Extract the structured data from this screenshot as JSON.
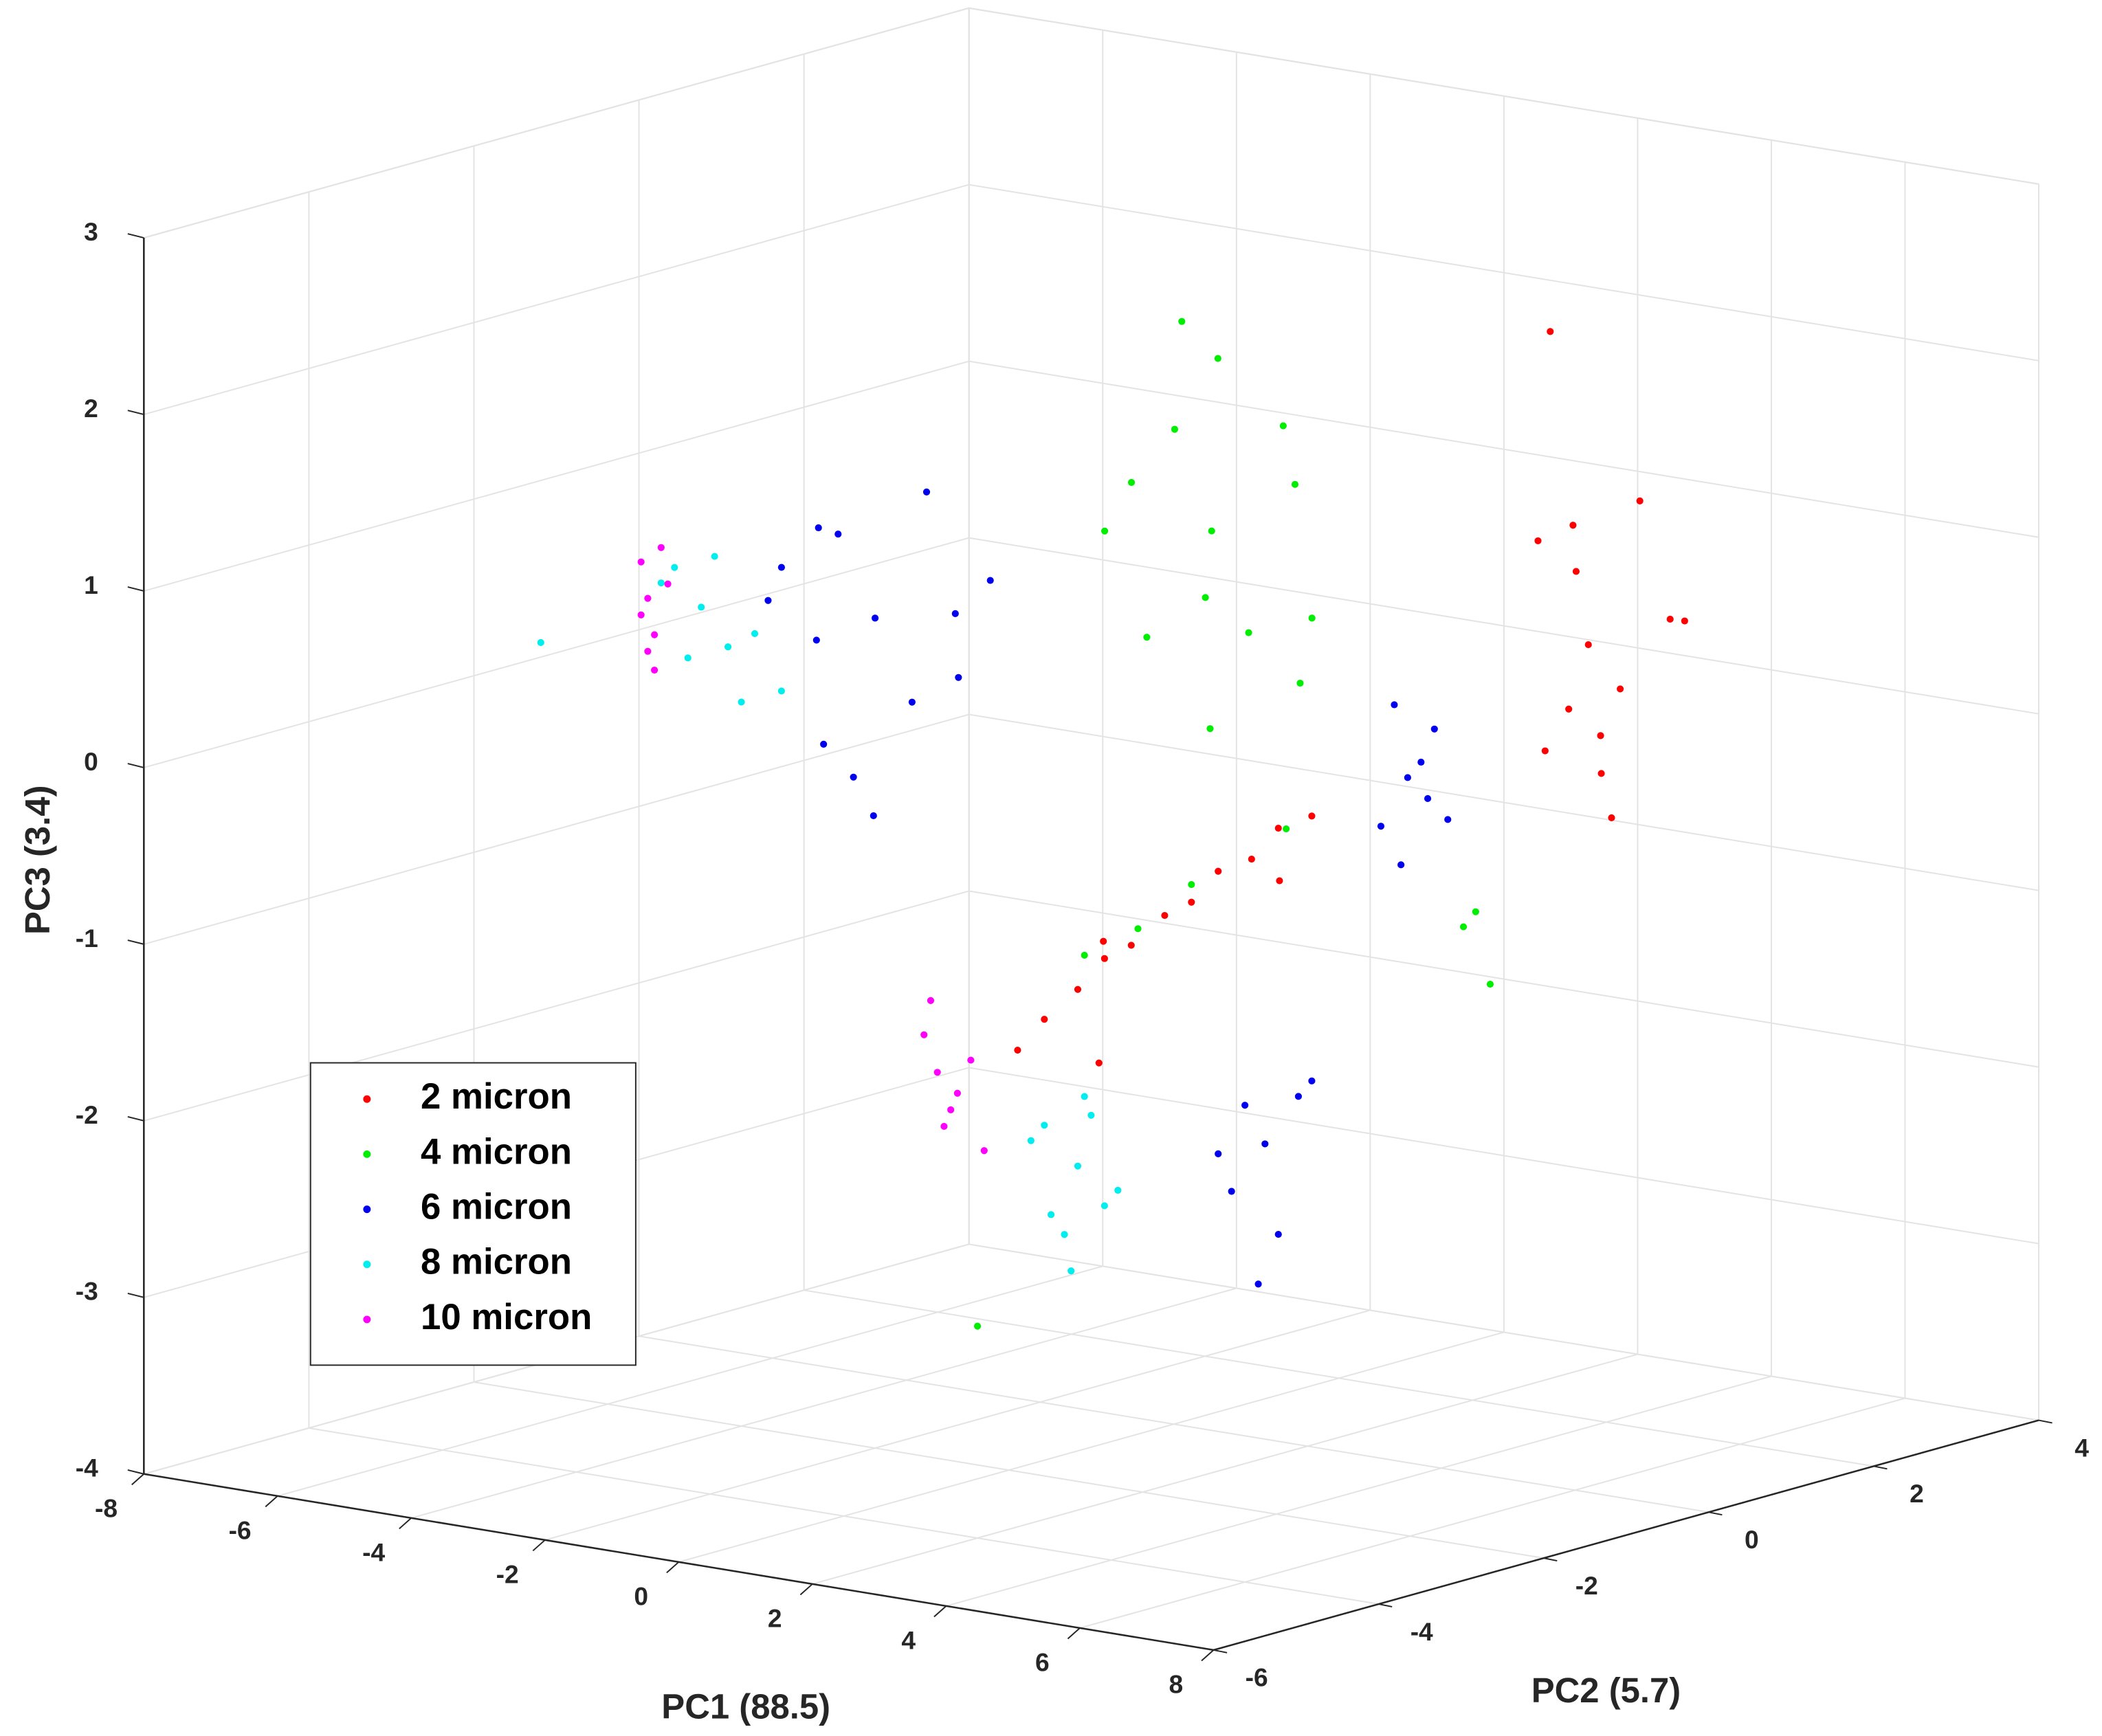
{
  "chart_data": {
    "type": "scatter3d",
    "xlabel": "PC1 (88.5)",
    "ylabel": "PC2 (5.7)",
    "zlabel": "PC3 (3.4)",
    "xlim": [
      -8,
      8
    ],
    "ylim": [
      -6,
      4
    ],
    "zlim": [
      -4,
      3
    ],
    "xticks": [
      -8,
      -6,
      -4,
      -2,
      0,
      2,
      4,
      6,
      8
    ],
    "yticks": [
      -6,
      -4,
      -2,
      0,
      2,
      4
    ],
    "zticks": [
      -4,
      -3,
      -2,
      -1,
      0,
      1,
      2,
      3
    ],
    "grid": true,
    "legend_location": "southwest",
    "series": [
      {
        "name": "2 micron",
        "color": "#ff0000",
        "x": [
          6.2,
          5.4,
          7.0,
          6.6,
          5.8,
          6.9,
          5.2,
          6.4,
          7.3,
          5.9,
          6.0,
          6.8,
          5.6,
          6.3,
          2.6,
          3.0,
          3.5,
          3.9,
          4.3,
          4.8,
          5.2,
          5.6,
          6.1,
          6.5,
          7.0,
          3.2,
          4.5,
          5.9
        ],
        "y": [
          0,
          0.5,
          -0.5,
          0.3,
          -0.2,
          0.6,
          0.2,
          -0.4,
          0.1,
          0.4,
          -0.3,
          -0.1,
          0.3,
          0.2,
          -4,
          -4,
          -4,
          -4,
          -4,
          -4,
          -4,
          -4,
          -4,
          -4,
          -4,
          -3.5,
          -4.5,
          -3.5
        ],
        "z": [
          0.8,
          1.1,
          0.4,
          1.6,
          0.2,
          0.9,
          1.3,
          0.5,
          1.0,
          0.0,
          2.6,
          0.6,
          1.4,
          -0.2,
          -1.2,
          -1.0,
          -0.8,
          -0.6,
          -0.5,
          -0.3,
          -0.2,
          0.0,
          0.1,
          0.3,
          0.4,
          -1.3,
          -0.4,
          -0.1
        ]
      },
      {
        "name": "4 micron",
        "color": "#00ee00",
        "x": [
          1.8,
          1.0,
          2.6,
          1.4,
          2.2,
          0.6,
          3.0,
          1.9,
          2.5,
          1.2,
          0.2,
          2.8,
          1.6,
          3.3,
          3.6,
          4.4,
          5.2,
          6.0,
          6.8,
          7.2,
          7.6,
          2.0
        ],
        "y": [
          -1,
          -0.8,
          -1.2,
          -0.6,
          -1.4,
          -1,
          -0.9,
          -1.1,
          -0.7,
          -1.3,
          -1,
          -0.8,
          -1.2,
          -1,
          -4,
          -4,
          -4,
          -3.5,
          -2,
          -2,
          -2.5,
          -4
        ],
        "z": [
          1.3,
          1.8,
          0.8,
          2.2,
          1.0,
          1.5,
          0.5,
          0.2,
          1.9,
          0.7,
          1.2,
          1.6,
          2.5,
          0.9,
          -0.6,
          -0.4,
          -0.1,
          0.2,
          -0.5,
          -0.8,
          -0.3,
          -2.8
        ]
      },
      {
        "name": "6 micron",
        "color": "#0000ee",
        "x": [
          -2.0,
          -2.8,
          -1.2,
          -3.4,
          -1.6,
          -2.4,
          -0.8,
          -3.0,
          -1.9,
          -2.6,
          -1.0,
          -3.6,
          -2.2,
          -0.4,
          7.4,
          7.0,
          7.8,
          7.2,
          6.8,
          7.6,
          7.1,
          7.5,
          6.3,
          5.8,
          6.8,
          6.0,
          6.5,
          5.6,
          7.0,
          6.2
        ],
        "y": [
          -2,
          -1.8,
          -2.2,
          -2,
          -1.7,
          -2.3,
          -2,
          -1.9,
          -2.1,
          -2.2,
          -1.8,
          -2,
          -2.1,
          -1.9,
          -3,
          -3,
          -3,
          -3,
          -3,
          -3,
          -3,
          -3,
          -4,
          -4,
          -4,
          -4,
          -4,
          -4,
          -4,
          -4
        ],
        "z": [
          0.7,
          1.1,
          0.3,
          0.9,
          1.4,
          0.0,
          0.8,
          0.5,
          -0.4,
          1.2,
          0.4,
          0.7,
          -0.2,
          1.0,
          0.6,
          0.9,
          0.3,
          0.5,
          0.2,
          0.8,
          0.0,
          0.4,
          -1.5,
          -1.8,
          -1.2,
          -1.3,
          -2.0,
          -1.6,
          -1.1,
          -2.3
        ]
      },
      {
        "name": "8 micron",
        "color": "#00eeee",
        "x": [
          -4.6,
          -5.0,
          -4.2,
          -4.8,
          -4.4,
          -3.8,
          -5.2,
          -4.0,
          -3.4,
          -7.0,
          3.5,
          3.0,
          3.9,
          3.3,
          3.7,
          2.8,
          4.1,
          3.4,
          3.6,
          3.1
        ],
        "y": [
          -2,
          -2,
          -2,
          -2,
          -2,
          -2,
          -2,
          -2,
          -2,
          -2,
          -4,
          -4,
          -4,
          -4,
          -4,
          -4,
          -4,
          -4,
          -4,
          -4
        ],
        "z": [
          0.6,
          0.8,
          0.4,
          0.3,
          0.9,
          0.5,
          0.7,
          0.1,
          0.2,
          0.25,
          -1.8,
          -1.6,
          -2.0,
          -2.2,
          -1.5,
          -1.7,
          -1.9,
          -2.4,
          -1.4,
          -2.1
        ]
      },
      {
        "name": "10 micron",
        "color": "#ff00ff",
        "x": [
          -5.4,
          -5.5,
          -5.3,
          -5.2,
          -5.4,
          -5.1,
          -5.5,
          -5.3,
          1.4,
          1.2,
          1.7,
          1.5,
          1.9,
          1.3,
          2.1,
          1.6
        ],
        "y": [
          -2,
          -2,
          -2,
          -2,
          -2,
          -2,
          -2,
          -2,
          -4,
          -4,
          -4,
          -4,
          -4,
          -4,
          -4,
          -4
        ],
        "z": [
          0.6,
          0.8,
          0.4,
          0.9,
          0.3,
          0.7,
          0.5,
          0.2,
          -1.4,
          -1.2,
          -1.5,
          -1.7,
          -1.3,
          -1.0,
          -1.8,
          -1.6
        ]
      }
    ]
  }
}
